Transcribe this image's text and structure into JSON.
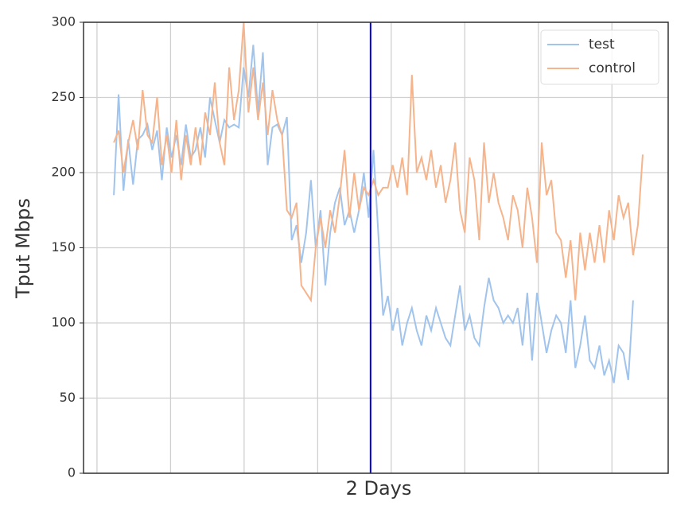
{
  "chart_data": {
    "type": "line",
    "xlabel": "2 Days",
    "ylabel": "Tput Mbps",
    "x": [
      0,
      1,
      2,
      3,
      4,
      5,
      6,
      7,
      8,
      9,
      10,
      11,
      12,
      13,
      14,
      15,
      16,
      17,
      18,
      19,
      20,
      21,
      22,
      23,
      24,
      25,
      26,
      27,
      28,
      29,
      30,
      31,
      32,
      33,
      34,
      35,
      36,
      37,
      38,
      39,
      40,
      41,
      42,
      43,
      44,
      45,
      46,
      47,
      48,
      49,
      50,
      51,
      52,
      53,
      54,
      55,
      56,
      57,
      58,
      59,
      60,
      61,
      62,
      63,
      64,
      65,
      66,
      67,
      68,
      69,
      70,
      71,
      72,
      73,
      74,
      75,
      76,
      77,
      78,
      79,
      80,
      81,
      82,
      83,
      84,
      85,
      86,
      87,
      88,
      89,
      90,
      91,
      92,
      93,
      94,
      95,
      96,
      97,
      98,
      99,
      100,
      101,
      102,
      103,
      104,
      105,
      106,
      107,
      108,
      109,
      110
    ],
    "series": [
      {
        "name": "test",
        "color": "#a1c4ec",
        "values": [
          185,
          252,
          188,
          222,
          192,
          222,
          225,
          232,
          215,
          228,
          195,
          230,
          210,
          225,
          205,
          232,
          210,
          215,
          230,
          210,
          250,
          235,
          220,
          235,
          230,
          232,
          230,
          270,
          250,
          285,
          240,
          280,
          205,
          230,
          232,
          225,
          237,
          155,
          165,
          140,
          160,
          195,
          150,
          175,
          125,
          160,
          180,
          190,
          165,
          175,
          160,
          175,
          200,
          170,
          215,
          160,
          105,
          118,
          95,
          110,
          85,
          100,
          110,
          95,
          85,
          105,
          95,
          110,
          100,
          90,
          85,
          105,
          125,
          95,
          105,
          90,
          85,
          110,
          130,
          115,
          110,
          100,
          105,
          100,
          110,
          85,
          120,
          75,
          120,
          100,
          80,
          95,
          105,
          100,
          80,
          115,
          70,
          85,
          105,
          75,
          70,
          85,
          65,
          75,
          60,
          85,
          80,
          62,
          115,
          null,
          null
        ]
      },
      {
        "name": "control",
        "color": "#f5b48c",
        "values": [
          220,
          228,
          200,
          220,
          235,
          215,
          255,
          225,
          220,
          250,
          205,
          225,
          200,
          235,
          195,
          225,
          205,
          230,
          205,
          240,
          225,
          260,
          220,
          205,
          270,
          235,
          255,
          300,
          240,
          270,
          235,
          260,
          225,
          255,
          235,
          225,
          175,
          170,
          180,
          125,
          120,
          115,
          150,
          170,
          150,
          175,
          160,
          185,
          215,
          170,
          200,
          175,
          190,
          185,
          195,
          185,
          190,
          190,
          205,
          190,
          210,
          185,
          265,
          200,
          210,
          195,
          215,
          190,
          205,
          180,
          195,
          220,
          175,
          160,
          210,
          195,
          155,
          220,
          180,
          200,
          180,
          170,
          155,
          185,
          175,
          150,
          190,
          170,
          140,
          220,
          185,
          195,
          160,
          155,
          130,
          155,
          115,
          160,
          135,
          160,
          140,
          165,
          140,
          175,
          155,
          185,
          170,
          180,
          145,
          165,
          212
        ]
      }
    ],
    "xlim": [
      -6.3,
      115.3
    ],
    "xticks": [
      -3.5,
      11.8,
      27.1,
      42.4,
      57.7,
      73,
      88.3,
      103.6
    ],
    "ylim": [
      0,
      300
    ],
    "yticks": [
      0,
      50,
      100,
      150,
      200,
      250,
      300
    ],
    "grid": true,
    "legend": "upper right",
    "vline": {
      "x": 53.4,
      "color": "#0000ee"
    }
  }
}
